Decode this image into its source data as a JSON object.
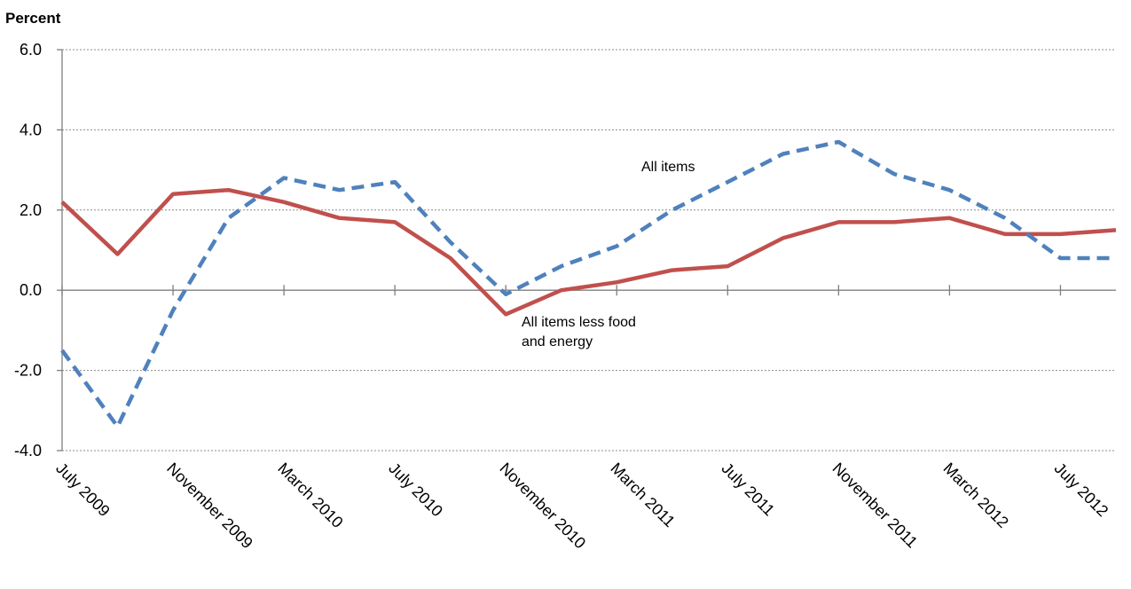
{
  "chart_data": {
    "type": "line",
    "ylabel": "Percent",
    "ylim": [
      -4.0,
      6.0
    ],
    "yticks": [
      "6.0",
      "4.0",
      "2.0",
      "0.0",
      "-2.0",
      "-4.0"
    ],
    "x": [
      "July 2009",
      "September 2009",
      "November 2009",
      "January 2010",
      "March 2010",
      "May 2010",
      "July 2010",
      "September 2010",
      "November 2010",
      "January 2011",
      "March 2011",
      "May 2011",
      "July 2011",
      "September 2011",
      "November 2011",
      "January 2012",
      "March 2012",
      "May 2012",
      "July 2012",
      "August 2012"
    ],
    "xtick_labels": [
      "July 2009",
      "November 2009",
      "March 2010",
      "July 2010",
      "November 2010",
      "March 2011",
      "July 2011",
      "November 2011",
      "March 2012",
      "July 2012"
    ],
    "series": [
      {
        "name": "All items",
        "color": "#4f81bd",
        "dash": "dashed",
        "values": [
          -1.5,
          -3.4,
          -0.5,
          1.8,
          2.8,
          2.5,
          2.7,
          1.2,
          -0.1,
          0.6,
          1.1,
          2.0,
          2.7,
          3.4,
          3.7,
          2.9,
          2.5,
          1.8,
          0.8,
          0.8
        ]
      },
      {
        "name": "All items less food and energy",
        "color": "#c0504d",
        "dash": "solid",
        "values": [
          2.2,
          0.9,
          2.4,
          2.5,
          2.2,
          1.8,
          1.7,
          0.8,
          -0.6,
          0.0,
          0.2,
          0.5,
          0.6,
          1.3,
          1.7,
          1.7,
          1.8,
          1.4,
          1.4,
          1.5
        ]
      }
    ],
    "annotations": [
      {
        "lines": [
          "All items"
        ]
      },
      {
        "lines": [
          "All items less food",
          "and energy"
        ]
      }
    ],
    "grid": true
  }
}
